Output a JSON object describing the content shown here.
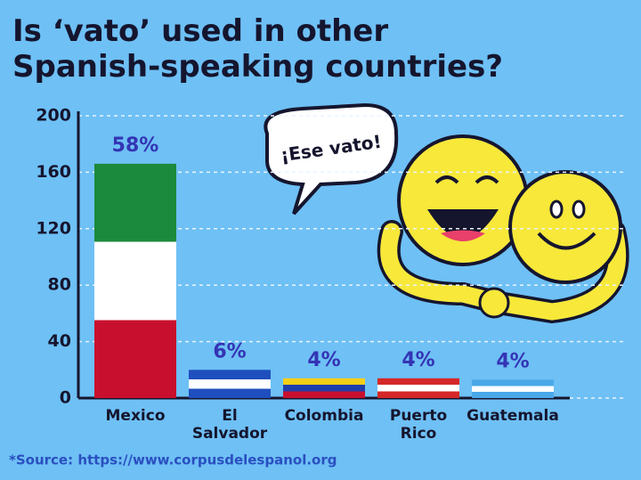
{
  "chart_data": {
    "type": "bar",
    "title": "Is ‘vato’ used in other\nSpanish-speaking countries?",
    "categories": [
      "Mexico",
      "El\nSalvador",
      "Colombia",
      "Puerto\nRico",
      "Guatemala"
    ],
    "values": [
      166,
      20,
      14,
      14,
      13
    ],
    "shares": [
      {
        "value": 58,
        "label": "58%"
      },
      {
        "value": 6,
        "label": "6%"
      },
      {
        "value": 4,
        "label": "4%"
      },
      {
        "value": 4,
        "label": "4%"
      },
      {
        "value": 4,
        "label": "4%"
      }
    ],
    "colors": [
      [
        "#1c8a3c",
        "#ffffff",
        "#c8102e"
      ],
      [
        "#1f4fbf",
        "#ffffff",
        "#1f4fbf"
      ],
      [
        "#f7cf16",
        "#1f3fa8",
        "#c8102e"
      ],
      [
        "#d62828",
        "#ffffff",
        "#d62828"
      ],
      [
        "#4aa8e8",
        "#ffffff",
        "#4aa8e8"
      ]
    ],
    "ylim": [
      0,
      200
    ],
    "yticks": [
      0,
      40,
      80,
      120,
      160,
      200
    ],
    "grid": true,
    "annotation": "¡Ese vato!",
    "source": "*Source: https://www.corpusdelespanol.org"
  }
}
